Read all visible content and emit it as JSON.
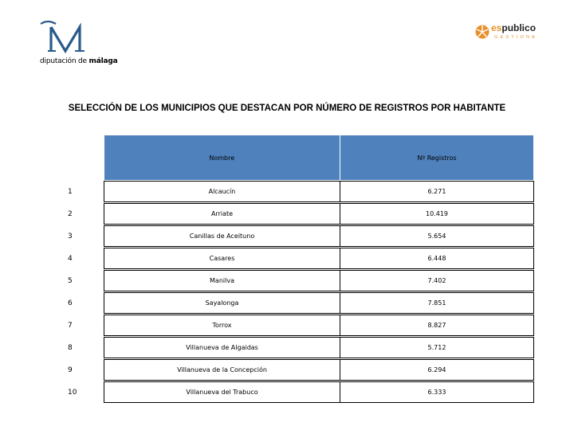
{
  "header": {
    "brand_left_prefix": "diputación de ",
    "brand_left_bold": "málaga",
    "brand_right_es": "es",
    "brand_right_pub": "publico",
    "brand_right_sub": "GESTIONA"
  },
  "title": "SELECCIÓN DE LOS MUNICIPIOS QUE DESTACAN POR NÚMERO DE REGISTROS POR HABITANTE",
  "table": {
    "headers": [
      "Nombre",
      "Nº Registros"
    ],
    "rows": [
      {
        "idx": "1",
        "name": "Alcaucín",
        "value": "6.271"
      },
      {
        "idx": "2",
        "name": "Arriate",
        "value": "10.419"
      },
      {
        "idx": "3",
        "name": "Canillas de Aceituno",
        "value": "5.654"
      },
      {
        "idx": "4",
        "name": "Casares",
        "value": "6.448"
      },
      {
        "idx": "5",
        "name": "Manilva",
        "value": "7.402"
      },
      {
        "idx": "6",
        "name": "Sayalonga",
        "value": "7.851"
      },
      {
        "idx": "7",
        "name": "Torrox",
        "value": "8.827"
      },
      {
        "idx": "8",
        "name": "Villanueva de Algaidas",
        "value": "5.712"
      },
      {
        "idx": "9",
        "name": "Villanueva de la Concepción",
        "value": "6.294"
      },
      {
        "idx": "10",
        "name": "Villanueva del Trabuco",
        "value": "6.333"
      }
    ]
  },
  "colors": {
    "header_fill": "#4f81bd",
    "logo_blue": "#2a5a8c",
    "logo_orange": "#e8912a"
  }
}
